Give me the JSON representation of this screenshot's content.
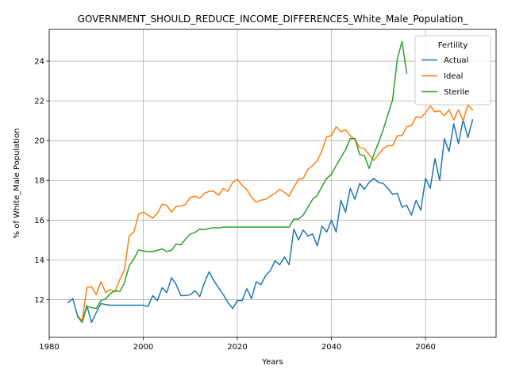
{
  "chart_data": {
    "type": "line",
    "title": "GOVERNMENT_SHOULD_REDUCE_INCOME_DIFFERENCES_White_Male_Population_",
    "xlabel": "Years",
    "ylabel": "% of White_Male Population",
    "xlim": [
      1980,
      2075
    ],
    "ylim": [
      10.1,
      25.6
    ],
    "xticks": [
      1980,
      2000,
      2020,
      2040,
      2060
    ],
    "yticks": [
      12,
      14,
      16,
      18,
      20,
      22,
      24
    ],
    "grid": true,
    "legend": {
      "title": "Fertility",
      "placement": "top-right"
    },
    "series": [
      {
        "name": "Actual",
        "color": "#1f77b4",
        "x": [
          1984,
          1985,
          1986,
          1987,
          1988,
          1989,
          1990,
          1991,
          1992,
          1993,
          1994,
          1995,
          1996,
          1997,
          1998,
          1999,
          2000,
          2001,
          2002,
          2003,
          2004,
          2005,
          2006,
          2007,
          2008,
          2009,
          2010,
          2011,
          2012,
          2013,
          2014,
          2015,
          2016,
          2017,
          2018,
          2019,
          2020,
          2021,
          2022,
          2023,
          2024,
          2025,
          2026,
          2027,
          2028,
          2029,
          2030,
          2031,
          2032,
          2033,
          2034,
          2035,
          2036,
          2037,
          2038,
          2039,
          2040,
          2041,
          2042,
          2043,
          2044,
          2045,
          2046,
          2047,
          2048,
          2049,
          2050,
          2051,
          2052,
          2053,
          2054,
          2055,
          2056,
          2057,
          2058,
          2059,
          2060,
          2061,
          2062,
          2063,
          2064,
          2065,
          2066,
          2067,
          2068,
          2069,
          2070
        ],
        "values": [
          11.85,
          12.05,
          11.2,
          10.9,
          11.7,
          10.85,
          11.35,
          11.8,
          11.75,
          11.72,
          11.72,
          11.72,
          11.72,
          11.72,
          11.72,
          11.72,
          11.72,
          11.65,
          12.2,
          11.95,
          12.6,
          12.35,
          13.1,
          12.75,
          12.2,
          12.2,
          12.25,
          12.45,
          12.15,
          12.85,
          13.4,
          12.95,
          12.6,
          12.25,
          11.85,
          11.55,
          11.95,
          11.95,
          12.55,
          12.05,
          12.9,
          12.75,
          13.2,
          13.45,
          13.95,
          13.75,
          14.15,
          13.75,
          15.55,
          15.0,
          15.5,
          15.2,
          15.3,
          14.7,
          15.7,
          15.4,
          16.0,
          15.4,
          17.0,
          16.4,
          17.6,
          17.05,
          17.85,
          17.55,
          17.9,
          18.1,
          17.9,
          17.85,
          17.6,
          17.3,
          17.35,
          16.65,
          16.75,
          16.25,
          17.0,
          16.5,
          18.1,
          17.6,
          19.1,
          18.0,
          20.1,
          19.45,
          20.85,
          19.85,
          21.05,
          20.15,
          21.05
        ]
      },
      {
        "name": "Ideal",
        "color": "#ff7f0e",
        "x": [
          1986,
          1987,
          1988,
          1989,
          1990,
          1991,
          1992,
          1993,
          1994,
          1995,
          1996,
          1997,
          1998,
          1999,
          2000,
          2001,
          2002,
          2003,
          2004,
          2005,
          2006,
          2007,
          2008,
          2009,
          2010,
          2011,
          2012,
          2013,
          2014,
          2015,
          2016,
          2017,
          2018,
          2019,
          2020,
          2021,
          2022,
          2023,
          2024,
          2025,
          2026,
          2027,
          2028,
          2029,
          2030,
          2031,
          2032,
          2033,
          2034,
          2035,
          2036,
          2037,
          2038,
          2039,
          2040,
          2041,
          2042,
          2043,
          2044,
          2045,
          2046,
          2047,
          2048,
          2049,
          2050,
          2051,
          2052,
          2053,
          2054,
          2055,
          2056,
          2057,
          2058,
          2059,
          2060,
          2061,
          2062,
          2063,
          2064,
          2065,
          2066,
          2067,
          2068,
          2069,
          2070
        ],
        "values": [
          11.15,
          10.95,
          12.6,
          12.65,
          12.25,
          12.9,
          12.35,
          12.5,
          12.4,
          13.0,
          13.5,
          15.2,
          15.4,
          16.3,
          16.4,
          16.25,
          16.1,
          16.35,
          16.8,
          16.75,
          16.4,
          16.7,
          16.7,
          16.8,
          17.15,
          17.2,
          17.1,
          17.35,
          17.45,
          17.45,
          17.25,
          17.6,
          17.45,
          17.9,
          18.05,
          17.75,
          17.55,
          17.15,
          16.9,
          17.0,
          17.05,
          17.2,
          17.35,
          17.55,
          17.4,
          17.2,
          17.65,
          18.05,
          18.1,
          18.55,
          18.75,
          19.0,
          19.5,
          20.2,
          20.25,
          20.7,
          20.45,
          20.55,
          20.25,
          20.05,
          19.65,
          19.6,
          19.3,
          19.0,
          19.3,
          19.6,
          19.75,
          19.75,
          20.25,
          20.25,
          20.7,
          20.75,
          21.2,
          21.15,
          21.4,
          21.75,
          21.45,
          21.5,
          21.25,
          21.55,
          21.05,
          21.55,
          21.0,
          21.8,
          21.55
        ]
      },
      {
        "name": "Sterile",
        "color": "#2ca02c",
        "x": [
          1986,
          1987,
          1988,
          1989,
          1990,
          1991,
          1992,
          1993,
          1994,
          1995,
          1996,
          1997,
          1998,
          1999,
          2000,
          2001,
          2002,
          2003,
          2004,
          2005,
          2006,
          2007,
          2008,
          2009,
          2010,
          2011,
          2012,
          2013,
          2014,
          2015,
          2016,
          2017,
          2018,
          2019,
          2020,
          2021,
          2022,
          2023,
          2024,
          2025,
          2026,
          2027,
          2028,
          2029,
          2030,
          2031,
          2032,
          2033,
          2034,
          2035,
          2036,
          2037,
          2038,
          2039,
          2040,
          2041,
          2042,
          2043,
          2044,
          2045,
          2046,
          2047,
          2048,
          2049,
          2050,
          2051,
          2052,
          2053,
          2054,
          2055,
          2056
        ],
        "values": [
          11.15,
          10.85,
          11.65,
          11.6,
          11.55,
          11.95,
          12.05,
          12.3,
          12.45,
          12.4,
          12.85,
          13.7,
          14.05,
          14.5,
          14.45,
          14.42,
          14.42,
          14.48,
          14.55,
          14.42,
          14.48,
          14.8,
          14.75,
          15.05,
          15.3,
          15.38,
          15.55,
          15.52,
          15.58,
          15.62,
          15.6,
          15.65,
          15.65,
          15.65,
          15.65,
          15.65,
          15.65,
          15.65,
          15.65,
          15.65,
          15.65,
          15.65,
          15.65,
          15.65,
          15.65,
          15.65,
          16.05,
          16.05,
          16.25,
          16.65,
          17.05,
          17.25,
          17.7,
          18.1,
          18.3,
          18.75,
          19.15,
          19.55,
          20.1,
          20.1,
          19.3,
          19.25,
          18.6,
          19.3,
          19.9,
          20.55,
          21.3,
          22.05,
          24.1,
          25.0,
          23.4
        ]
      }
    ]
  }
}
